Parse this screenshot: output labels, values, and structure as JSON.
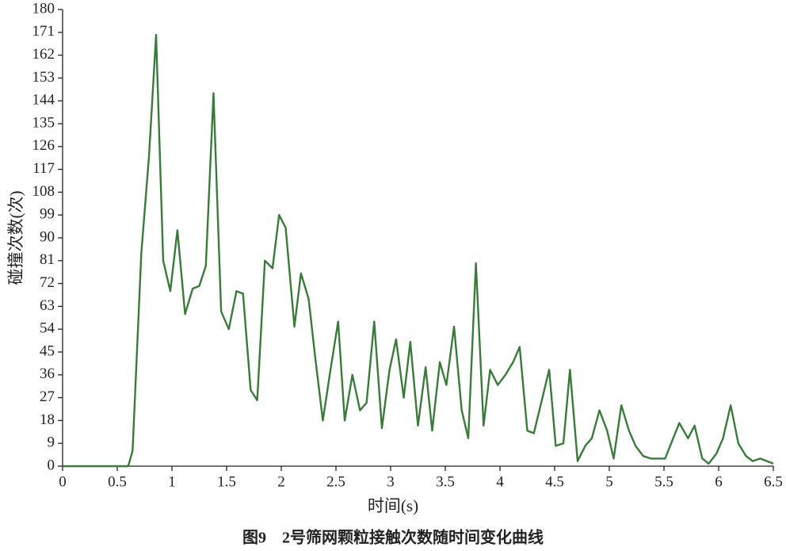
{
  "chart_data": {
    "type": "line",
    "caption": "图9　2号筛网颗粒接触次数随时间变化曲线",
    "x_label": "时间(s)",
    "y_label": "碰撞次数(次)",
    "color": "#3a7a3a",
    "x": [
      0,
      0.1,
      0.2,
      0.3,
      0.4,
      0.5,
      0.6,
      0.64,
      0.72,
      0.79,
      0.855,
      0.92,
      0.985,
      1.05,
      1.12,
      1.19,
      1.25,
      1.31,
      1.38,
      1.45,
      1.52,
      1.59,
      1.65,
      1.72,
      1.78,
      1.85,
      1.92,
      1.98,
      2.04,
      2.12,
      2.18,
      2.25,
      2.31,
      2.38,
      2.45,
      2.52,
      2.58,
      2.65,
      2.72,
      2.78,
      2.85,
      2.92,
      2.99,
      3.05,
      3.12,
      3.18,
      3.25,
      3.32,
      3.38,
      3.45,
      3.51,
      3.58,
      3.65,
      3.71,
      3.78,
      3.85,
      3.91,
      3.98,
      4.05,
      4.12,
      4.18,
      4.25,
      4.31,
      4.45,
      4.51,
      4.58,
      4.64,
      4.71,
      4.78,
      4.84,
      4.91,
      4.98,
      5.04,
      5.11,
      5.18,
      5.24,
      5.31,
      5.38,
      5.51,
      5.64,
      5.72,
      5.78,
      5.85,
      5.91,
      5.98,
      6.04,
      6.11,
      6.18,
      6.25,
      6.31,
      6.38,
      6.5
    ],
    "values": [
      0,
      0,
      0,
      0,
      0,
      0,
      0,
      6,
      84,
      122,
      170,
      81,
      69,
      93,
      60,
      70,
      71,
      79,
      147,
      61,
      54,
      69,
      68,
      30,
      26,
      81,
      78,
      99,
      94,
      55,
      76,
      66,
      43,
      18,
      38,
      57,
      18,
      36,
      22,
      25,
      57,
      15,
      38,
      50,
      27,
      49,
      16,
      39,
      14,
      41,
      32,
      55,
      22,
      11,
      80,
      16,
      38,
      32,
      36,
      41,
      47,
      14,
      13,
      38,
      8,
      9,
      38,
      2,
      8,
      11,
      22,
      14,
      3,
      24,
      14,
      8,
      4,
      3,
      3,
      17,
      11,
      16,
      3,
      1,
      5,
      11,
      24,
      9,
      4,
      2,
      3,
      1
    ],
    "xlim": [
      0,
      6.5
    ],
    "xticks": [
      0,
      0.5,
      1,
      1.5,
      2,
      2.5,
      3,
      3.5,
      4,
      4.5,
      5,
      5.5,
      6,
      6.5
    ],
    "ylim": [
      0,
      180
    ],
    "yticks": [
      0,
      9,
      18,
      27,
      36,
      45,
      54,
      63,
      72,
      81,
      90,
      99,
      108,
      117,
      126,
      135,
      144,
      153,
      162,
      171,
      180
    ]
  }
}
